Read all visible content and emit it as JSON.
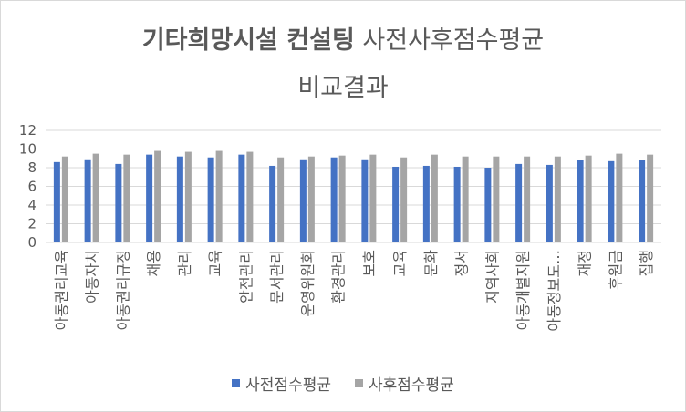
{
  "title": {
    "bold_part": "기타희망시설 컨설팅",
    "regular_part": "사전사후점수평균",
    "line2": "비교결과"
  },
  "colors": {
    "pre": "#4472c4",
    "post": "#a5a5a5",
    "grid": "#d9d9d9"
  },
  "chart_data": {
    "type": "bar",
    "categories": [
      "아동권리교육",
      "아동자치",
      "아동권리규정",
      "채용",
      "관리",
      "교육",
      "안전관리",
      "문서관리",
      "운영위원회",
      "환경관리",
      "보호",
      "교육",
      "문화",
      "정서",
      "지역사회",
      "아동개별지원",
      "아동정보도…",
      "재정",
      "후원금",
      "집행"
    ],
    "series": [
      {
        "name": "사전점수평균",
        "values": [
          8.6,
          8.9,
          8.4,
          9.4,
          9.2,
          9.1,
          9.4,
          8.2,
          8.9,
          9.1,
          8.9,
          8.1,
          8.2,
          8.1,
          8.0,
          8.4,
          8.3,
          8.8,
          8.7,
          8.8
        ]
      },
      {
        "name": "사후점수평균",
        "values": [
          9.2,
          9.5,
          9.4,
          9.8,
          9.7,
          9.8,
          9.7,
          9.1,
          9.2,
          9.3,
          9.4,
          9.1,
          9.4,
          9.2,
          9.2,
          9.2,
          9.2,
          9.3,
          9.5,
          9.4
        ]
      }
    ],
    "yticks": [
      0,
      2,
      4,
      6,
      8,
      10,
      12
    ],
    "ylim": [
      0,
      12
    ],
    "grid": true,
    "legend_position": "bottom"
  }
}
